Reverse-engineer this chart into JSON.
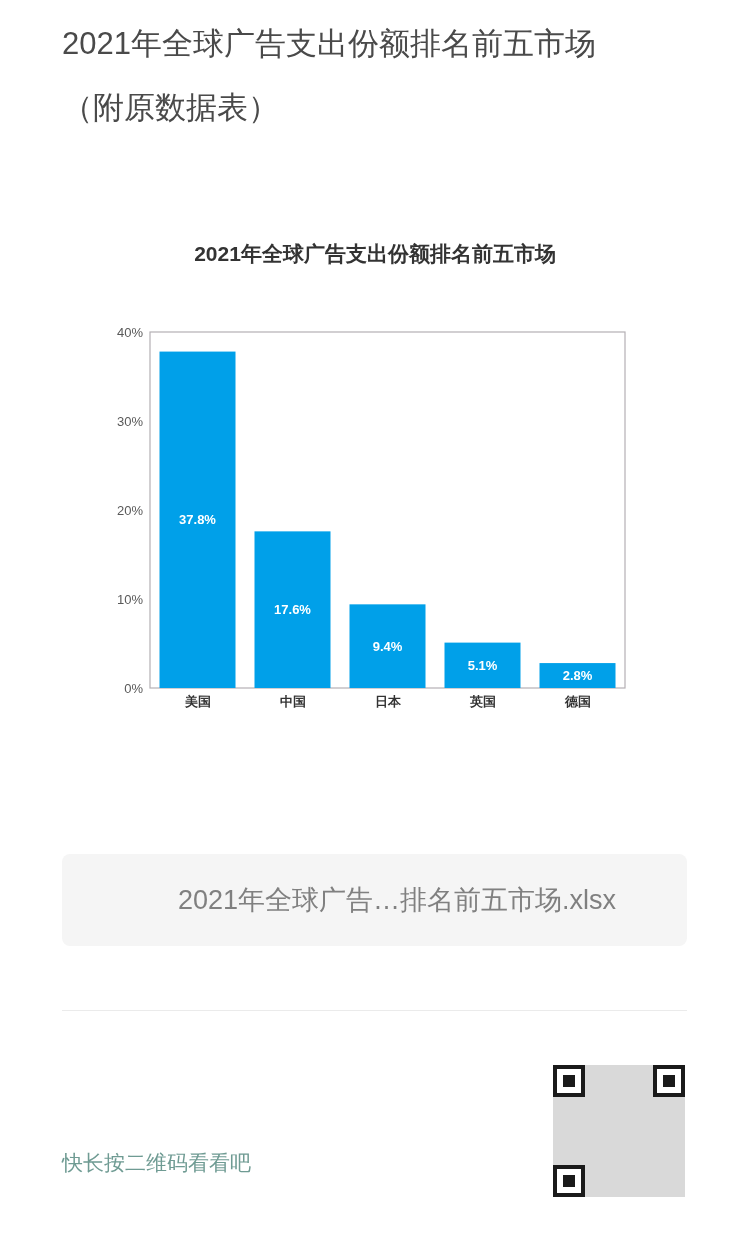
{
  "chart_data": {
    "type": "bar",
    "title": "2021年全球广告支出份额排名前五市场（附原数据表）",
    "subtitle": "2021年全球广告支出份额排名前五市场",
    "categories": [
      "美国",
      "中国",
      "日本",
      "英国",
      "德国"
    ],
    "values": [
      37.8,
      17.6,
      9.4,
      5.1,
      2.8
    ],
    "value_labels": [
      "37.8%",
      "17.6%",
      "9.4%",
      "5.1%",
      "2.8%"
    ],
    "color": "#00a0e9",
    "ylim": [
      0,
      40
    ],
    "yticks": [
      {
        "value": 0,
        "label": "0%"
      },
      {
        "value": 10,
        "label": "10%"
      },
      {
        "value": 20,
        "label": "20%"
      },
      {
        "value": 30,
        "label": "30%"
      },
      {
        "value": 40,
        "label": "40%"
      }
    ],
    "annotations": [
      "2021年全球广告…排名前五市场.xlsx",
      "快长按二维码看看吧"
    ]
  }
}
